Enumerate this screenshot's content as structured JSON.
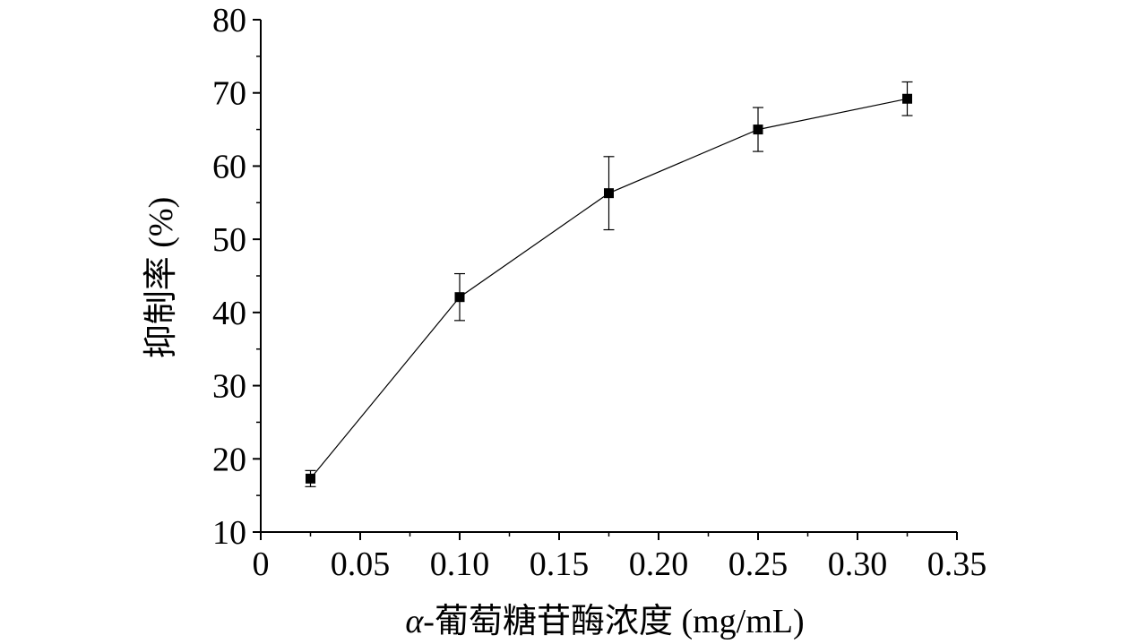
{
  "chart_data": {
    "type": "line",
    "title": "",
    "xlabel": "α-葡萄糖苷酶浓度 (mg/mL)",
    "xlabel_prefix": "α",
    "xlabel_rest": "-葡萄糖苷酶浓度 (mg/mL)",
    "ylabel": "抑制率 (%)",
    "xlim": [
      0,
      0.35
    ],
    "ylim": [
      10,
      80
    ],
    "xticks": [
      "0",
      "0.05",
      "0.10",
      "0.15",
      "0.20",
      "0.25",
      "0.30",
      "0.35"
    ],
    "yticks": [
      "10",
      "20",
      "30",
      "40",
      "50",
      "60",
      "70",
      "80"
    ],
    "grid": false,
    "legend": "none",
    "series": [
      {
        "x": [
          0.025,
          0.1,
          0.175,
          0.25,
          0.325
        ],
        "y": [
          17.3,
          42.1,
          56.3,
          65.0,
          69.2
        ],
        "err": [
          1.1,
          3.2,
          5.0,
          3.0,
          2.3
        ]
      }
    ]
  }
}
